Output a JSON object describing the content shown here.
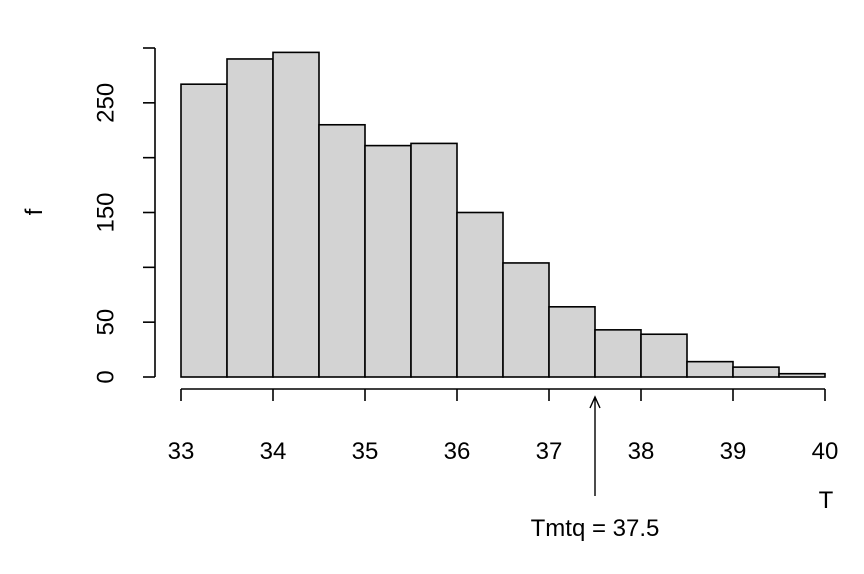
{
  "chart_data": {
    "type": "bar",
    "title": "",
    "xlabel": "T",
    "ylabel": "f",
    "bin_edges": [
      33,
      33.5,
      34,
      34.5,
      35,
      35.5,
      36,
      36.5,
      37,
      37.5,
      38,
      38.5,
      39,
      39.5,
      40
    ],
    "values": [
      267,
      290,
      296,
      230,
      211,
      213,
      150,
      104,
      64,
      43,
      39,
      14,
      9,
      3
    ],
    "xlim": [
      33,
      40
    ],
    "ylim": [
      0,
      300
    ],
    "x_ticks": [
      "33",
      "34",
      "35",
      "36",
      "37",
      "38",
      "39",
      "40"
    ],
    "y_ticks": [
      "0",
      "50",
      "150",
      "250"
    ],
    "y_tick_values": [
      0,
      50,
      100,
      150,
      200,
      250,
      300
    ],
    "y_tick_labels_shown": [
      0,
      50,
      150,
      250
    ],
    "bar_color": "#d3d3d3",
    "grid": false,
    "annotation": {
      "text": "Tmtq = 37.5",
      "x": 37.5
    }
  }
}
